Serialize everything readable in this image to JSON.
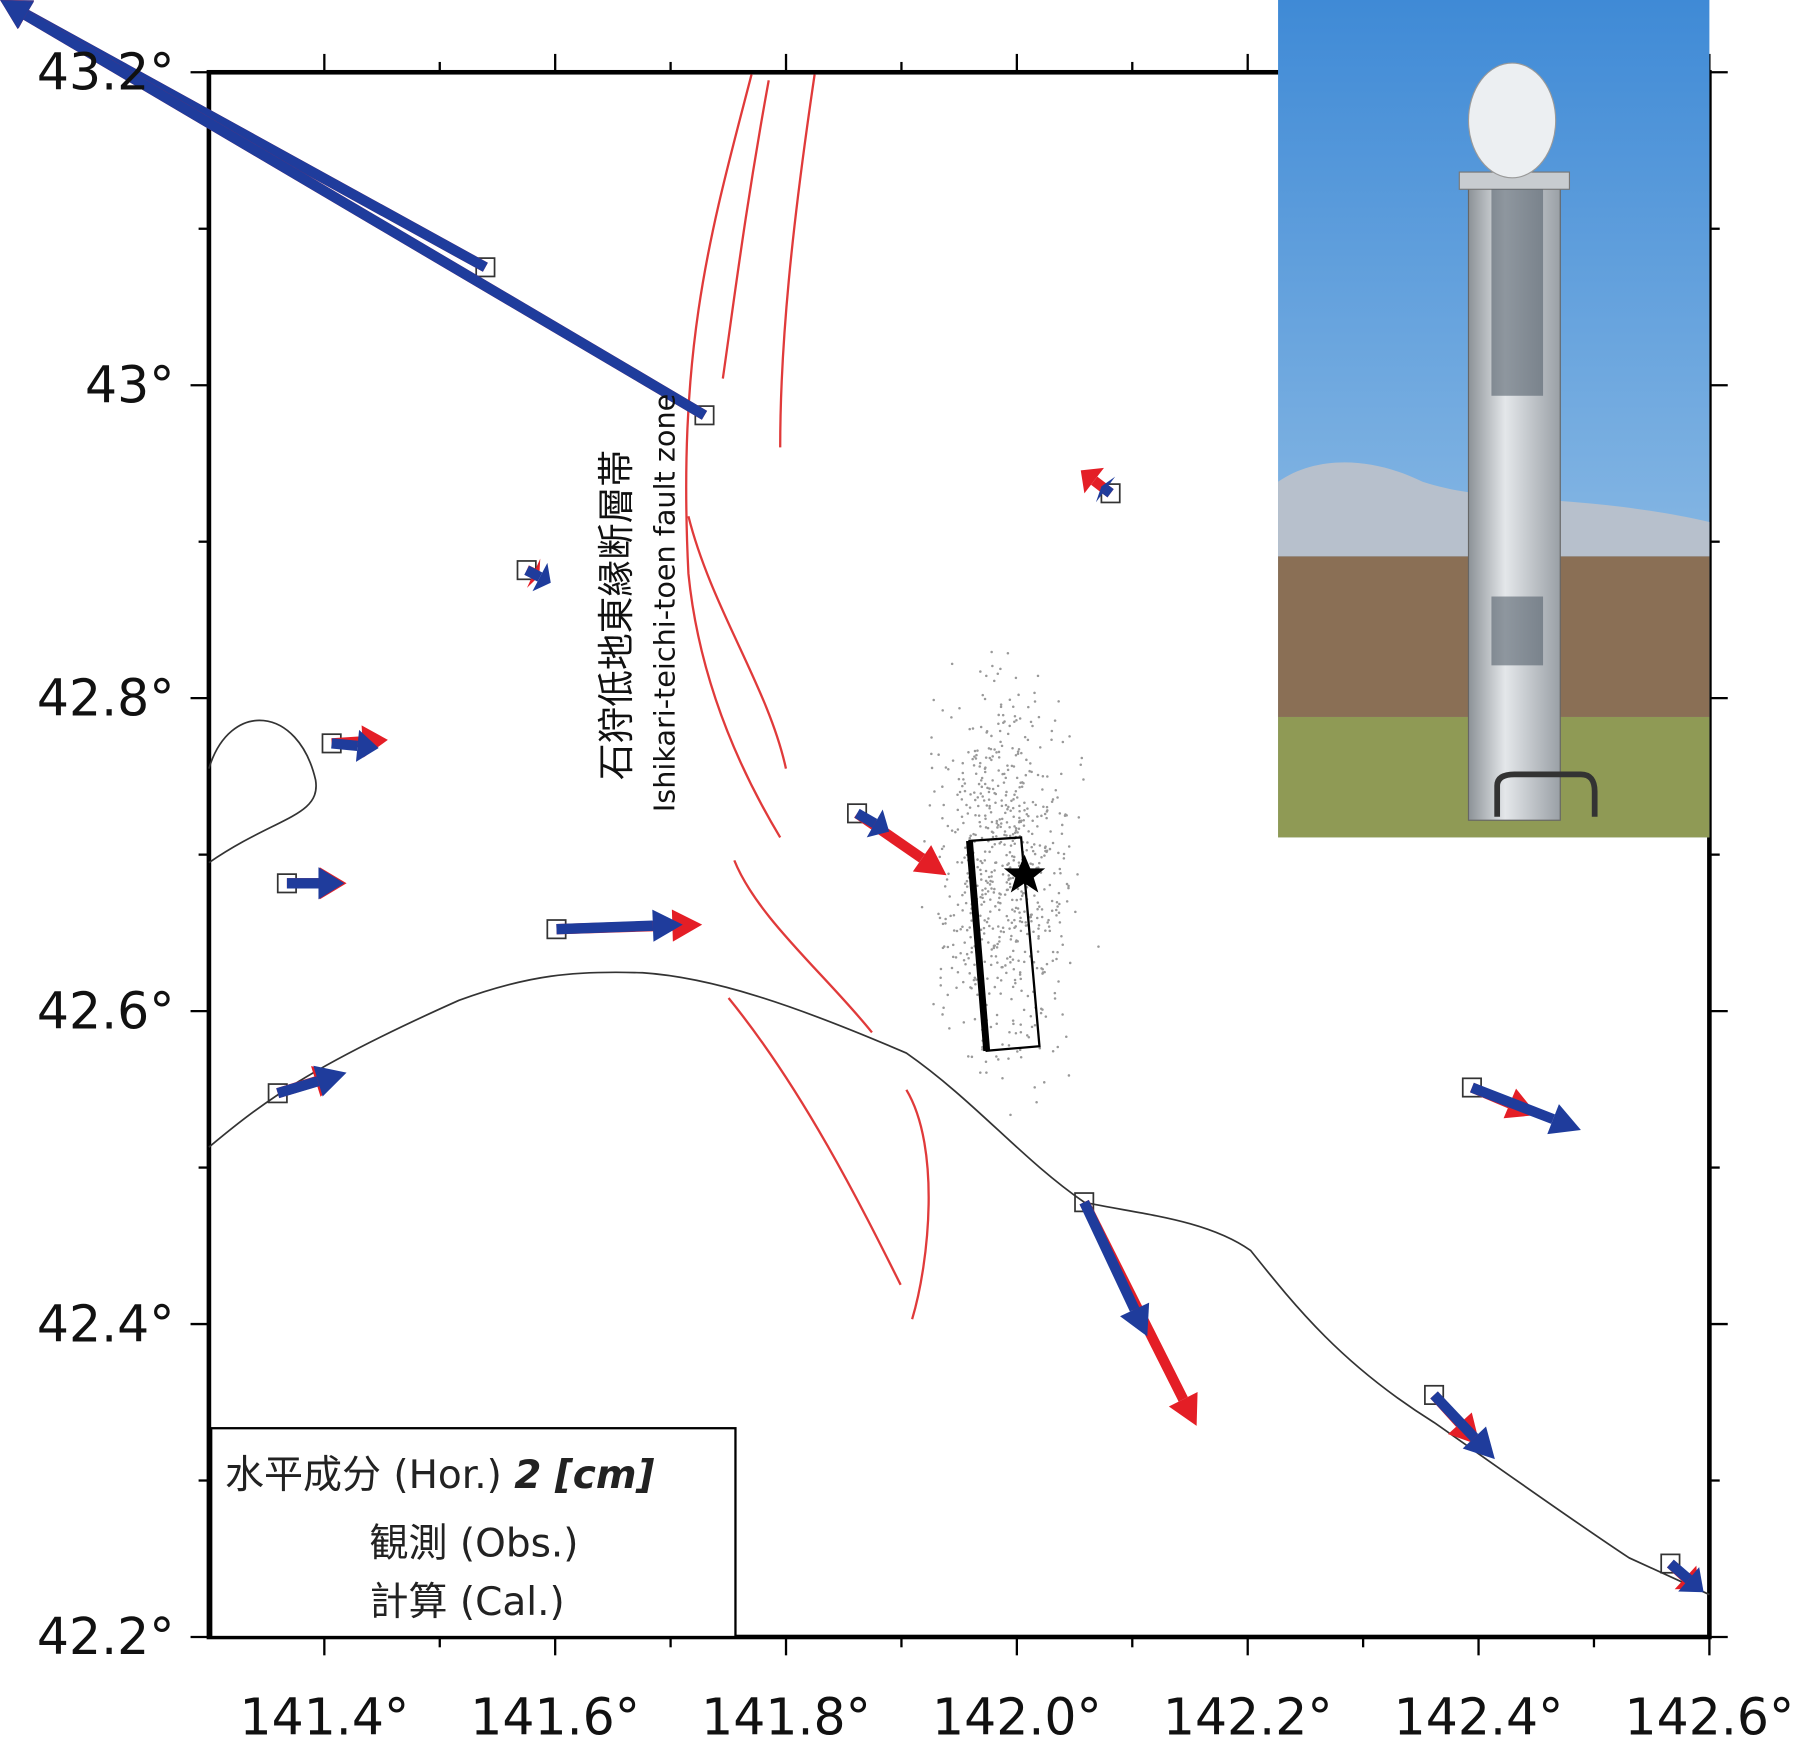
{
  "map": {
    "xlim": [
      141.3,
      142.6
    ],
    "ylim": [
      42.2,
      43.2
    ],
    "xticks": [
      {
        "value": 141.4,
        "label": "141.4°"
      },
      {
        "value": 141.6,
        "label": "141.6°"
      },
      {
        "value": 141.8,
        "label": "141.8°"
      },
      {
        "value": 142.0,
        "label": "142.0°"
      },
      {
        "value": 142.2,
        "label": "142.2°"
      },
      {
        "value": 142.4,
        "label": "142.4°"
      },
      {
        "value": 142.6,
        "label": "142.6°"
      }
    ],
    "yticks": [
      {
        "value": 42.2,
        "label": "42.2°"
      },
      {
        "value": 42.4,
        "label": "42.4°"
      },
      {
        "value": 42.6,
        "label": "42.6°"
      },
      {
        "value": 42.8,
        "label": "42.8°"
      },
      {
        "value": 43.0,
        "label": "43°"
      },
      {
        "value": 43.2,
        "label": "43.2°"
      }
    ],
    "fault_label_ja": "石狩低地東縁断層帯",
    "fault_label_en": "Ishikari-teichi-toen fault zone",
    "legend": {
      "title": "水平成分 (Hor.)",
      "scale": "2 [cm]",
      "observed": "観測 (Obs.)",
      "calculated": "計算 (Cal.)"
    }
  }
}
